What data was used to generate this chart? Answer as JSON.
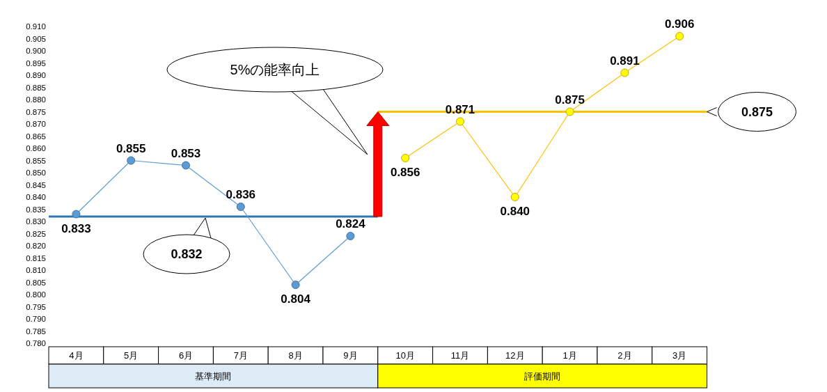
{
  "chart_data": {
    "type": "line",
    "categories": [
      "4月",
      "5月",
      "6月",
      "7月",
      "8月",
      "9月",
      "10月",
      "11月",
      "12月",
      "1月",
      "2月",
      "3月"
    ],
    "series": [
      {
        "color": "#5b9bd5",
        "values": [
          0.833,
          0.855,
          0.853,
          0.836,
          0.804,
          0.824,
          null,
          null,
          null,
          null,
          null,
          null
        ],
        "value_labels": [
          "0.833",
          "0.855",
          "0.853",
          "0.836",
          "0.804",
          "0.824",
          null,
          null,
          null,
          null,
          null,
          null
        ]
      },
      {
        "color": "#ffc000",
        "values": [
          null,
          null,
          null,
          null,
          null,
          null,
          0.856,
          0.871,
          0.84,
          0.875,
          0.891,
          0.906
        ],
        "value_labels": [
          null,
          null,
          null,
          null,
          null,
          null,
          "0.856",
          "0.871",
          "0.840",
          "0.875",
          "0.891",
          "0.906"
        ]
      }
    ],
    "ylim": [
      0.78,
      0.91
    ],
    "yticks": [
      {
        "value": 0.78,
        "label": "0.780"
      },
      {
        "value": 0.785,
        "label": "0.785"
      },
      {
        "value": 0.79,
        "label": "0.790"
      },
      {
        "value": 0.795,
        "label": "0.795"
      },
      {
        "value": 0.8,
        "label": "0.800"
      },
      {
        "value": 0.805,
        "label": "0.805"
      },
      {
        "value": 0.81,
        "label": "0.810"
      },
      {
        "value": 0.815,
        "label": "0.815"
      },
      {
        "value": 0.82,
        "label": "0.820"
      },
      {
        "value": 0.825,
        "label": "0.825"
      },
      {
        "value": 0.83,
        "label": "0.830"
      },
      {
        "value": 0.835,
        "label": "0.835"
      },
      {
        "value": 0.84,
        "label": "0.840"
      },
      {
        "value": 0.845,
        "label": "0.845"
      },
      {
        "value": 0.85,
        "label": "0.850"
      },
      {
        "value": 0.855,
        "label": "0.855"
      },
      {
        "value": 0.86,
        "label": "0.860"
      },
      {
        "value": 0.865,
        "label": "0.865"
      },
      {
        "value": 0.87,
        "label": "0.870"
      },
      {
        "value": 0.875,
        "label": "0.875"
      },
      {
        "value": 0.88,
        "label": "0.880"
      },
      {
        "value": 0.885,
        "label": "0.885"
      },
      {
        "value": 0.89,
        "label": "0.890"
      },
      {
        "value": 0.895,
        "label": "0.895"
      },
      {
        "value": 0.9,
        "label": "0.900"
      },
      {
        "value": 0.905,
        "label": "0.905"
      },
      {
        "value": 0.91,
        "label": "0.910"
      }
    ],
    "ref_lines": [
      {
        "axis": "y",
        "value": 0.832,
        "label": "0.832",
        "color": "#2e75b6"
      },
      {
        "axis": "y",
        "value": 0.875,
        "label": "0.875",
        "color": "#ffc000"
      }
    ],
    "marker": "circle",
    "annotations": [
      "5%の能率向上",
      "基準期間",
      "評価期間"
    ]
  }
}
